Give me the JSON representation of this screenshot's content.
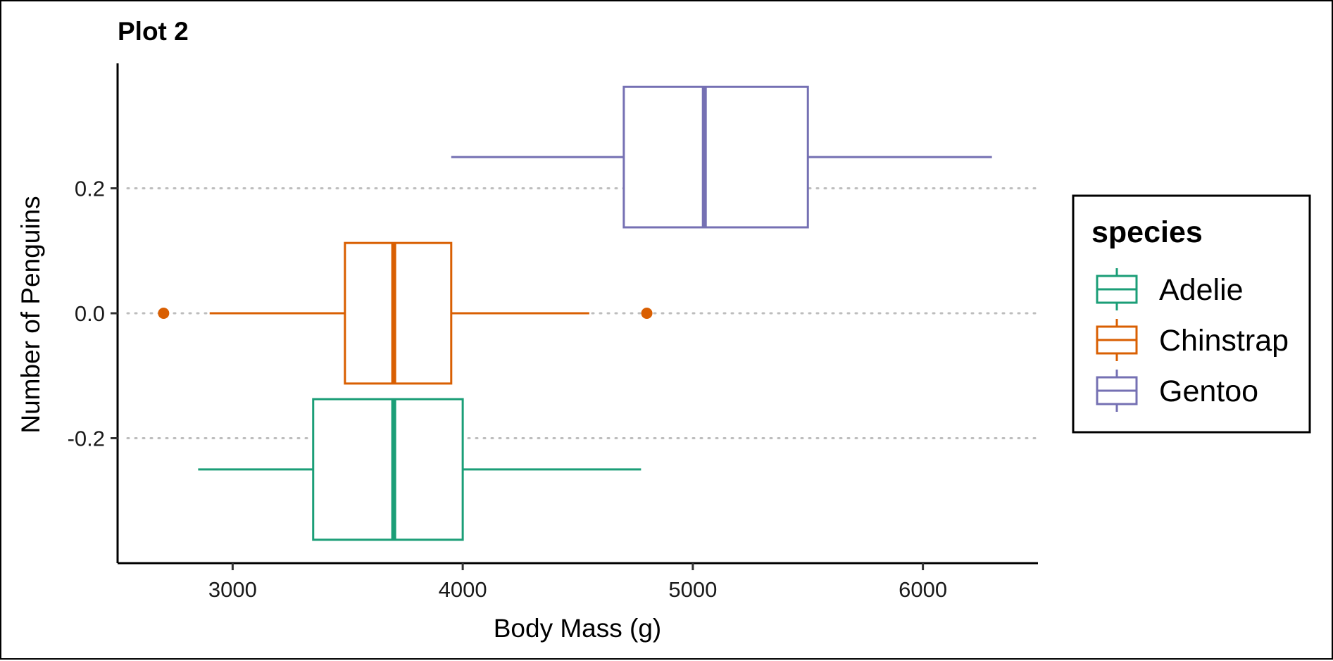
{
  "chart_data": {
    "type": "boxplot",
    "orientation": "horizontal",
    "title": "Plot 2",
    "xlabel": "Body Mass (g)",
    "ylabel": "Number of Penguins",
    "xlim": [
      2500,
      6500
    ],
    "ylim": [
      -0.4,
      0.4
    ],
    "x_ticks": [
      3000,
      4000,
      5000,
      6000
    ],
    "x_tick_labels": [
      "3000",
      "4000",
      "5000",
      "6000"
    ],
    "y_ticks": [
      0.2,
      0.0,
      -0.2
    ],
    "y_tick_labels": [
      "0.2",
      "0.0",
      "-0.2"
    ],
    "grid": "horizontal major, dotted",
    "legend": {
      "title": "species",
      "position": "right"
    },
    "series": [
      {
        "name": "Adelie",
        "color": "#1b9e77",
        "y_center": -0.25,
        "box_height": 0.225,
        "whisker_low": 2850,
        "q1": 3350,
        "median": 3700,
        "q3": 4000,
        "whisker_high": 4775,
        "outliers": []
      },
      {
        "name": "Chinstrap",
        "color": "#d95f02",
        "y_center": 0.0,
        "box_height": 0.225,
        "whisker_low": 2900,
        "q1": 3488,
        "median": 3700,
        "q3": 3950,
        "whisker_high": 4550,
        "outliers": [
          2700,
          4800
        ]
      },
      {
        "name": "Gentoo",
        "color": "#7570b3",
        "y_center": 0.25,
        "box_height": 0.225,
        "whisker_low": 3950,
        "q1": 4700,
        "median": 5050,
        "q3": 5500,
        "whisker_high": 6300,
        "outliers": []
      }
    ]
  },
  "colors": {
    "grid": "#bdbdbd",
    "axis": "#000000",
    "frame": "#000000"
  }
}
